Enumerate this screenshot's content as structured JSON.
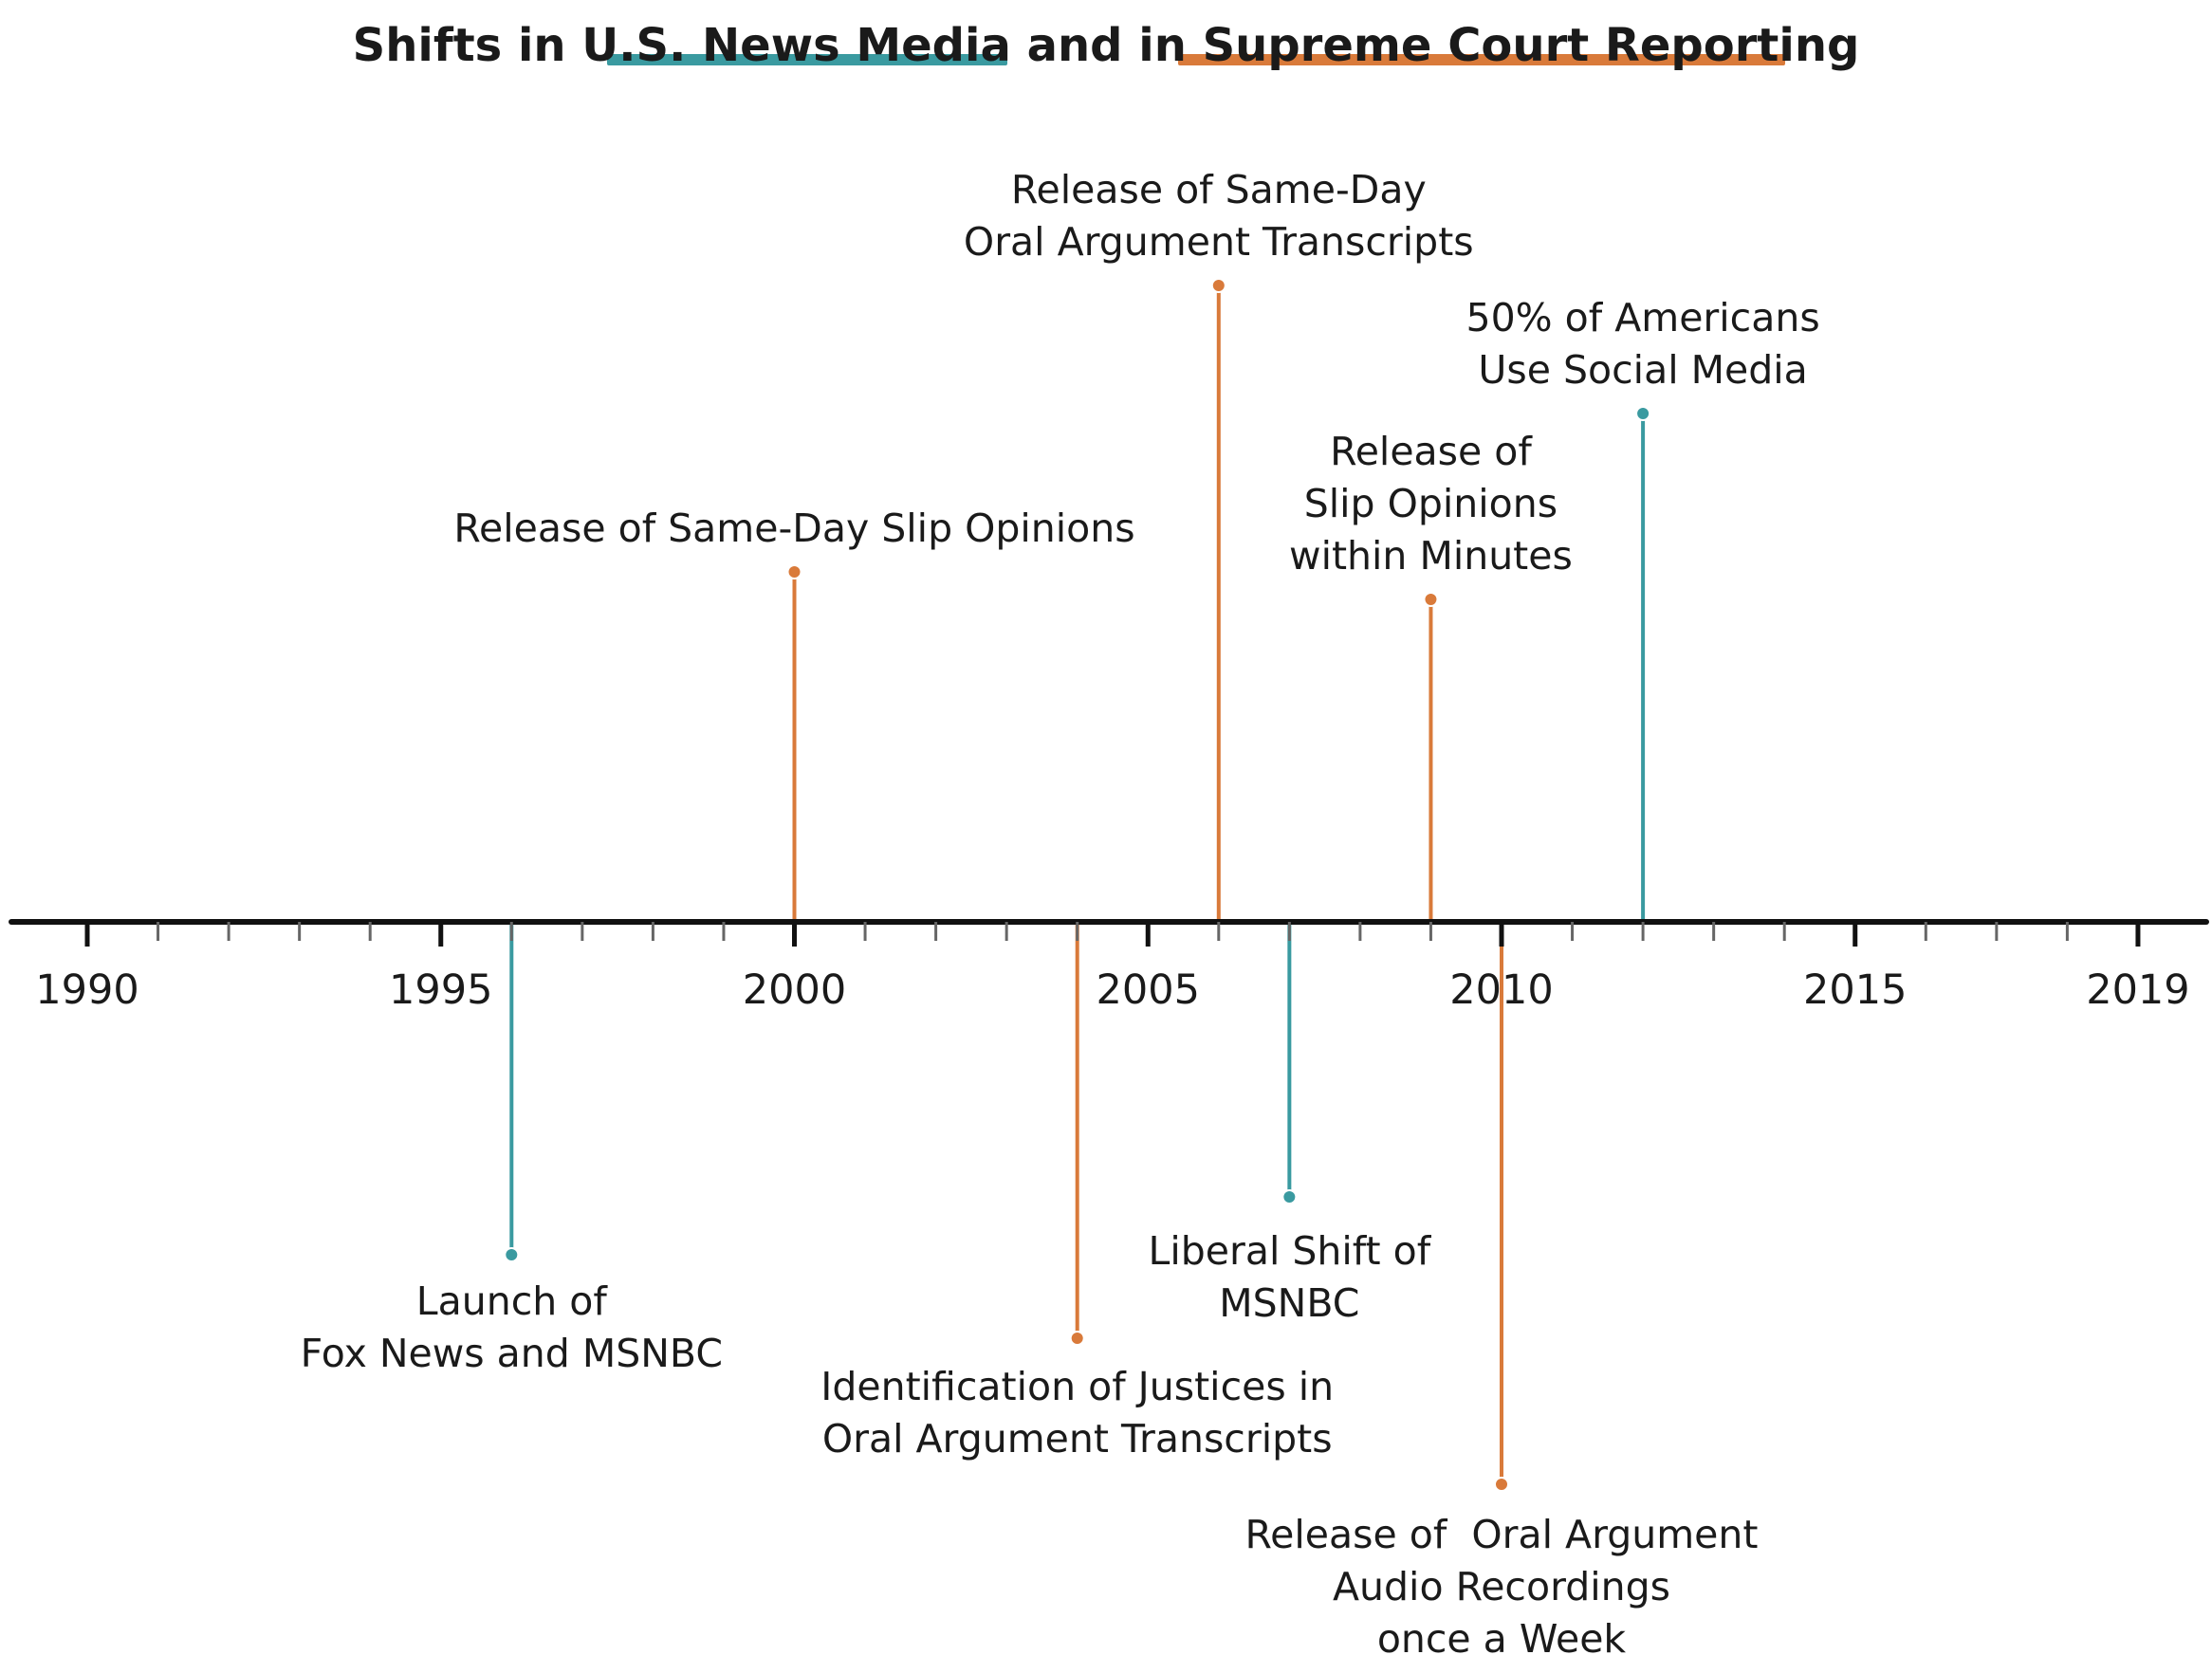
{
  "title": {
    "part1": "Shifts in ",
    "media_phrase": "U.S. News Media",
    "part2": " and in ",
    "court_phrase": "Supreme Court Reporting"
  },
  "colors": {
    "media": "#3a9aa0",
    "court": "#d97a3a",
    "axis": "#111111",
    "minor_tick": "#666666"
  },
  "axis": {
    "start_year": 1990,
    "end_year": 2019,
    "year_labels": [
      "1990",
      "1995",
      "2000",
      "2005",
      "2010",
      "2015",
      "2019"
    ]
  },
  "events": [
    {
      "year": 1996,
      "category": "media",
      "side": "below",
      "lines": [
        "Launch of",
        "Fox News and MSNBC"
      ]
    },
    {
      "year": 2000,
      "category": "court",
      "side": "above",
      "lines": [
        "Release of Same-Day Slip Opinions"
      ]
    },
    {
      "year": 2004,
      "category": "court",
      "side": "below",
      "lines": [
        "Identification of Justices in",
        "Oral Argument Transcripts"
      ]
    },
    {
      "year": 2006,
      "category": "court",
      "side": "above",
      "lines": [
        "Release of Same-Day",
        "Oral Argument Transcripts"
      ]
    },
    {
      "year": 2007,
      "category": "media",
      "side": "below",
      "lines": [
        "Liberal Shift of",
        "MSNBC"
      ]
    },
    {
      "year": 2009,
      "category": "court",
      "side": "above",
      "lines": [
        "Release of",
        "Slip Opinions",
        "within Minutes"
      ]
    },
    {
      "year": 2010,
      "category": "court",
      "side": "below",
      "lines": [
        "Release of  Oral Argument",
        "Audio Recordings",
        "once a Week"
      ]
    },
    {
      "year": 2012,
      "category": "media",
      "side": "above",
      "lines": [
        "50% of Americans",
        "Use Social Media"
      ]
    }
  ]
}
